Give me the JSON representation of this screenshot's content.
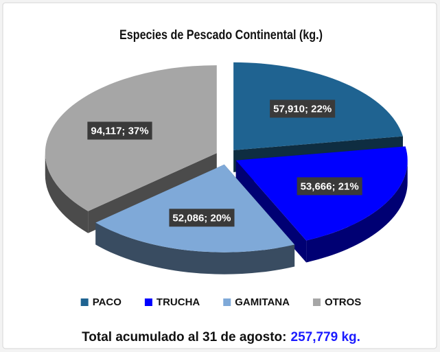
{
  "chart_data": {
    "type": "pie3d",
    "title": "Especies de Pescado Continental (kg.)",
    "categories": [
      "PACO",
      "TRUCHA",
      "GAMITANA",
      "OTROS"
    ],
    "values": [
      57910,
      53666,
      52086,
      94117
    ],
    "value_labels": [
      "57,910; 22%",
      "53,666; 21%",
      "52,086; 20%",
      "94,117; 37%"
    ],
    "colors": [
      "#1f6391",
      "#0000ff",
      "#7fa9d8",
      "#a6a6a6"
    ],
    "legend": "bottom",
    "footer": {
      "text": "Total acumulado al 31 de agosto:",
      "total": "257,779 kg."
    }
  }
}
